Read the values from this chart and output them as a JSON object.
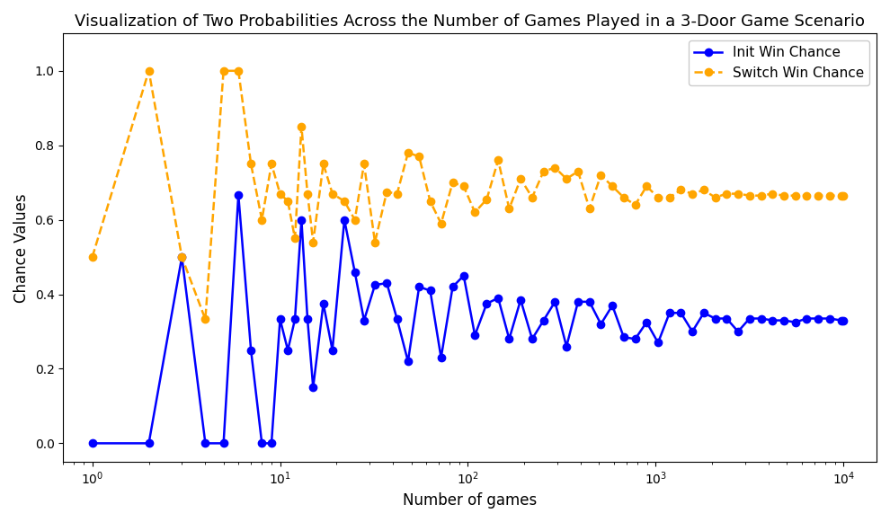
{
  "title": "Visualization of Two Probabilities Across the Number of Games Played in a 3-Door Game Scenario",
  "xlabel": "Number of games",
  "ylabel": "Chance Values",
  "init_color": "blue",
  "switch_color": "orange",
  "init_label": "Init Win Chance",
  "switch_label": "Switch Win Chance",
  "init_marker": "o",
  "switch_marker": "o",
  "init_linestyle": "-",
  "switch_linestyle": "--",
  "init_linewidth": 1.8,
  "switch_linewidth": 1.8,
  "markersize": 6,
  "ylim": [
    -0.05,
    1.1
  ],
  "xlim_left": 0.7,
  "xlim_right": 15000,
  "background_color": "#ffffff",
  "legend_loc": "upper right",
  "title_fontsize": 13,
  "label_fontsize": 12,
  "x_games": [
    1,
    2,
    3,
    4,
    5,
    6,
    7,
    8,
    9,
    10,
    11,
    12,
    13,
    14,
    15,
    17,
    19,
    22,
    25,
    28,
    32,
    37,
    42,
    48,
    55,
    63,
    72,
    83,
    95,
    109,
    126,
    145,
    166,
    191,
    220,
    253,
    291,
    335,
    386,
    444,
    511,
    588,
    676,
    778,
    895,
    1030,
    1185,
    1363,
    1568,
    1804,
    2075,
    2387,
    2746,
    3162,
    3639,
    4187,
    4817,
    5543,
    6377,
    7339,
    8447,
    9717,
    10000
  ],
  "init_win": [
    0.0,
    0.0,
    0.5,
    0.0,
    0.0,
    0.667,
    0.25,
    0.0,
    0.0,
    0.333,
    0.25,
    0.333,
    0.6,
    0.333,
    0.15,
    0.375,
    0.25,
    0.6,
    0.46,
    0.33,
    0.425,
    0.43,
    0.333,
    0.22,
    0.42,
    0.41,
    0.23,
    0.42,
    0.45,
    0.29,
    0.375,
    0.39,
    0.28,
    0.385,
    0.28,
    0.33,
    0.38,
    0.26,
    0.38,
    0.38,
    0.32,
    0.37,
    0.285,
    0.28,
    0.325,
    0.27,
    0.35,
    0.35,
    0.3,
    0.35,
    0.335,
    0.335,
    0.3,
    0.335,
    0.335,
    0.33,
    0.33,
    0.325,
    0.335,
    0.335,
    0.335,
    0.33,
    0.33
  ],
  "switch_win": [
    0.5,
    1.0,
    0.5,
    0.333,
    1.0,
    1.0,
    0.75,
    0.6,
    0.75,
    0.67,
    0.65,
    0.55,
    0.85,
    0.67,
    0.54,
    0.75,
    0.67,
    0.65,
    0.6,
    0.75,
    0.54,
    0.675,
    0.67,
    0.78,
    0.77,
    0.65,
    0.59,
    0.7,
    0.69,
    0.62,
    0.655,
    0.76,
    0.63,
    0.71,
    0.66,
    0.73,
    0.74,
    0.71,
    0.73,
    0.63,
    0.72,
    0.69,
    0.66,
    0.64,
    0.69,
    0.66,
    0.66,
    0.68,
    0.67,
    0.68,
    0.66,
    0.67,
    0.67,
    0.665,
    0.665,
    0.67,
    0.665,
    0.665,
    0.665,
    0.665,
    0.665,
    0.665,
    0.665
  ]
}
